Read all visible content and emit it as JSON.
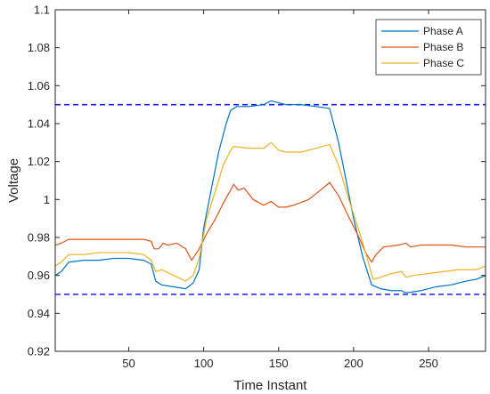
{
  "chart_data": {
    "type": "line",
    "title": "",
    "xlabel": "Time Instant",
    "ylabel": "Voltage",
    "xlim": [
      1,
      288
    ],
    "ylim": [
      0.92,
      1.1
    ],
    "xticks": [
      50,
      100,
      150,
      200,
      250
    ],
    "yticks": [
      0.92,
      0.94,
      0.96,
      0.98,
      1,
      1.02,
      1.04,
      1.06,
      1.08,
      1.1
    ],
    "xtick_labels": [
      "50",
      "100",
      "150",
      "200",
      "250"
    ],
    "ytick_labels": [
      "0.92",
      "0.94",
      "0.96",
      "0.98",
      "1",
      "1.02",
      "1.04",
      "1.06",
      "1.08",
      "1.1"
    ],
    "grid": false,
    "legend_position": "top-right",
    "reference_lines": [
      {
        "y": 1.05,
        "style": "dashed",
        "color": "#1f1fff"
      },
      {
        "y": 0.95,
        "style": "dashed",
        "color": "#1f1fff"
      }
    ],
    "series": [
      {
        "name": "Phase A",
        "color": "#0072bd",
        "points": [
          [
            1,
            0.96
          ],
          [
            5,
            0.962
          ],
          [
            10,
            0.967
          ],
          [
            20,
            0.968
          ],
          [
            30,
            0.968
          ],
          [
            40,
            0.969
          ],
          [
            50,
            0.969
          ],
          [
            60,
            0.968
          ],
          [
            65,
            0.966
          ],
          [
            68,
            0.957
          ],
          [
            72,
            0.955
          ],
          [
            80,
            0.954
          ],
          [
            88,
            0.953
          ],
          [
            93,
            0.956
          ],
          [
            97,
            0.963
          ],
          [
            100,
            0.985
          ],
          [
            105,
            1.005
          ],
          [
            110,
            1.025
          ],
          [
            115,
            1.04
          ],
          [
            118,
            1.047
          ],
          [
            122,
            1.049
          ],
          [
            130,
            1.049
          ],
          [
            140,
            1.05
          ],
          [
            145,
            1.052
          ],
          [
            150,
            1.051
          ],
          [
            155,
            1.05
          ],
          [
            165,
            1.05
          ],
          [
            175,
            1.049
          ],
          [
            184,
            1.048
          ],
          [
            190,
            1.03
          ],
          [
            195,
            1.01
          ],
          [
            200,
            0.99
          ],
          [
            206,
            0.97
          ],
          [
            212,
            0.955
          ],
          [
            218,
            0.953
          ],
          [
            225,
            0.952
          ],
          [
            232,
            0.952
          ],
          [
            234,
            0.951
          ],
          [
            237,
            0.951
          ],
          [
            245,
            0.952
          ],
          [
            255,
            0.954
          ],
          [
            265,
            0.955
          ],
          [
            275,
            0.957
          ],
          [
            282,
            0.958
          ],
          [
            288,
            0.96
          ]
        ]
      },
      {
        "name": "Phase B",
        "color": "#d95319",
        "points": [
          [
            1,
            0.976
          ],
          [
            5,
            0.977
          ],
          [
            10,
            0.979
          ],
          [
            20,
            0.979
          ],
          [
            30,
            0.979
          ],
          [
            40,
            0.979
          ],
          [
            50,
            0.979
          ],
          [
            60,
            0.979
          ],
          [
            65,
            0.978
          ],
          [
            67,
            0.974
          ],
          [
            70,
            0.974
          ],
          [
            73,
            0.977
          ],
          [
            76,
            0.976
          ],
          [
            82,
            0.977
          ],
          [
            88,
            0.974
          ],
          [
            92,
            0.968
          ],
          [
            97,
            0.974
          ],
          [
            102,
            0.982
          ],
          [
            108,
            0.99
          ],
          [
            113,
            0.998
          ],
          [
            118,
            1.005
          ],
          [
            120,
            1.008
          ],
          [
            123,
            1.005
          ],
          [
            127,
            1.006
          ],
          [
            133,
            1.0
          ],
          [
            140,
            0.997
          ],
          [
            145,
            0.999
          ],
          [
            150,
            0.996
          ],
          [
            155,
            0.996
          ],
          [
            160,
            0.997
          ],
          [
            170,
            1.0
          ],
          [
            178,
            1.005
          ],
          [
            184,
            1.009
          ],
          [
            190,
            1.002
          ],
          [
            196,
            0.992
          ],
          [
            203,
            0.981
          ],
          [
            208,
            0.972
          ],
          [
            212,
            0.967
          ],
          [
            215,
            0.971
          ],
          [
            220,
            0.975
          ],
          [
            230,
            0.976
          ],
          [
            235,
            0.977
          ],
          [
            238,
            0.975
          ],
          [
            245,
            0.976
          ],
          [
            255,
            0.976
          ],
          [
            265,
            0.976
          ],
          [
            275,
            0.975
          ],
          [
            282,
            0.975
          ],
          [
            288,
            0.975
          ]
        ]
      },
      {
        "name": "Phase C",
        "color": "#edb120",
        "points": [
          [
            1,
            0.965
          ],
          [
            5,
            0.967
          ],
          [
            10,
            0.971
          ],
          [
            20,
            0.971
          ],
          [
            30,
            0.972
          ],
          [
            40,
            0.972
          ],
          [
            50,
            0.972
          ],
          [
            60,
            0.971
          ],
          [
            65,
            0.968
          ],
          [
            68,
            0.962
          ],
          [
            72,
            0.963
          ],
          [
            80,
            0.96
          ],
          [
            88,
            0.957
          ],
          [
            93,
            0.96
          ],
          [
            97,
            0.969
          ],
          [
            102,
            0.99
          ],
          [
            108,
            1.005
          ],
          [
            113,
            1.018
          ],
          [
            118,
            1.026
          ],
          [
            120,
            1.028
          ],
          [
            130,
            1.027
          ],
          [
            140,
            1.027
          ],
          [
            145,
            1.03
          ],
          [
            150,
            1.026
          ],
          [
            155,
            1.025
          ],
          [
            165,
            1.025
          ],
          [
            175,
            1.027
          ],
          [
            184,
            1.029
          ],
          [
            190,
            1.018
          ],
          [
            196,
            1.002
          ],
          [
            203,
            0.985
          ],
          [
            208,
            0.972
          ],
          [
            213,
            0.958
          ],
          [
            218,
            0.959
          ],
          [
            225,
            0.961
          ],
          [
            232,
            0.962
          ],
          [
            235,
            0.959
          ],
          [
            240,
            0.96
          ],
          [
            250,
            0.961
          ],
          [
            260,
            0.962
          ],
          [
            270,
            0.963
          ],
          [
            282,
            0.963
          ],
          [
            288,
            0.965
          ]
        ]
      }
    ]
  }
}
